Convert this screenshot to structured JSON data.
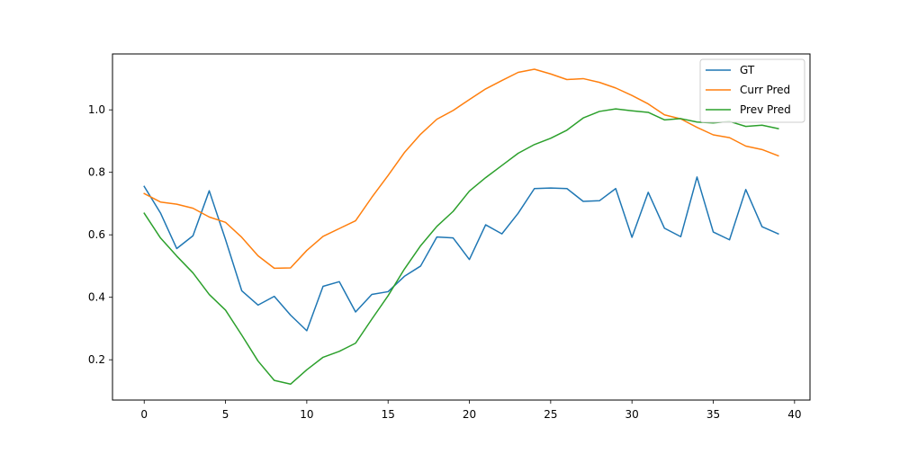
{
  "chart_data": {
    "type": "line",
    "title": "",
    "xlabel": "",
    "ylabel": "",
    "xlim": [
      -1.95,
      40.95
    ],
    "ylim": [
      0.071,
      1.179
    ],
    "x_ticks": [
      0,
      5,
      10,
      15,
      20,
      25,
      30,
      35,
      40
    ],
    "x_tick_labels": [
      "0",
      "5",
      "10",
      "15",
      "20",
      "25",
      "30",
      "35",
      "40"
    ],
    "y_ticks": [
      0.2,
      0.4,
      0.6,
      0.8,
      1.0
    ],
    "y_tick_labels": [
      "0.2",
      "0.4",
      "0.6",
      "0.8",
      "1.0"
    ],
    "grid": false,
    "legend_position": "top-right",
    "x": [
      0,
      1,
      2,
      3,
      4,
      5,
      6,
      7,
      8,
      9,
      10,
      11,
      12,
      13,
      14,
      15,
      16,
      17,
      18,
      19,
      20,
      21,
      22,
      23,
      24,
      25,
      26,
      27,
      28,
      29,
      30,
      31,
      32,
      33,
      34,
      35,
      36,
      37,
      38,
      39
    ],
    "series": [
      {
        "name": "GT",
        "color": "#1f77b4",
        "values": [
          0.755,
          0.67,
          0.556,
          0.597,
          0.741,
          0.585,
          0.421,
          0.375,
          0.403,
          0.343,
          0.293,
          0.435,
          0.45,
          0.353,
          0.409,
          0.418,
          0.467,
          0.5,
          0.593,
          0.59,
          0.521,
          0.632,
          0.603,
          0.669,
          0.748,
          0.75,
          0.748,
          0.707,
          0.709,
          0.748,
          0.592,
          0.736,
          0.621,
          0.594,
          0.785,
          0.609,
          0.584,
          0.745,
          0.626,
          0.603
        ]
      },
      {
        "name": "Curr Pred",
        "color": "#ff7f0e",
        "values": [
          0.732,
          0.705,
          0.698,
          0.685,
          0.657,
          0.64,
          0.592,
          0.533,
          0.493,
          0.494,
          0.55,
          0.595,
          0.62,
          0.645,
          0.72,
          0.79,
          0.863,
          0.922,
          0.97,
          0.998,
          1.033,
          1.067,
          1.094,
          1.12,
          1.13,
          1.115,
          1.097,
          1.1,
          1.088,
          1.07,
          1.046,
          1.019,
          0.984,
          0.971,
          0.944,
          0.92,
          0.911,
          0.884,
          0.873,
          0.853
        ]
      },
      {
        "name": "Prev Pred",
        "color": "#2ca02c",
        "values": [
          0.669,
          0.59,
          0.532,
          0.478,
          0.409,
          0.359,
          0.279,
          0.196,
          0.134,
          0.122,
          0.168,
          0.208,
          0.227,
          0.253,
          0.33,
          0.405,
          0.49,
          0.565,
          0.627,
          0.675,
          0.74,
          0.783,
          0.822,
          0.861,
          0.889,
          0.909,
          0.935,
          0.974,
          0.995,
          1.003,
          0.997,
          0.992,
          0.968,
          0.972,
          0.961,
          0.958,
          0.963,
          0.947,
          0.951,
          0.94
        ]
      }
    ]
  }
}
